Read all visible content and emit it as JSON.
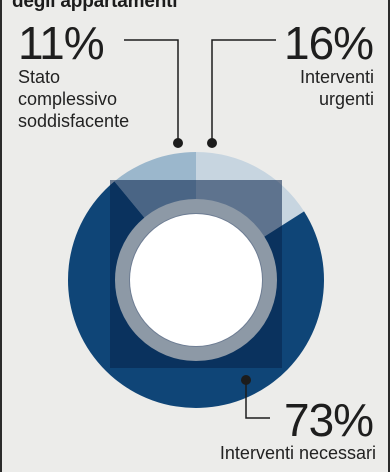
{
  "header": {
    "title": "degli appartamenti"
  },
  "chart_data": {
    "type": "pie",
    "style": "donut",
    "slices": [
      {
        "label_lines": [
          "Stato",
          "complessivo",
          "soddisfacente"
        ],
        "value": 11,
        "display": "11%",
        "color": "#9bb7cc"
      },
      {
        "label_lines": [
          "Interventi",
          "urgenti"
        ],
        "value": 16,
        "display": "16%",
        "color": "#c7d5e0"
      },
      {
        "label_lines": [
          "Interventi necessari"
        ],
        "value": 73,
        "display": "73%",
        "color": "#0f4577"
      }
    ],
    "colors": {
      "background": "#ececea",
      "overlay_square": "#08224a",
      "inner_ring": "#8d99a6",
      "center": "#ffffff",
      "leader": "#1c1c1c"
    }
  }
}
